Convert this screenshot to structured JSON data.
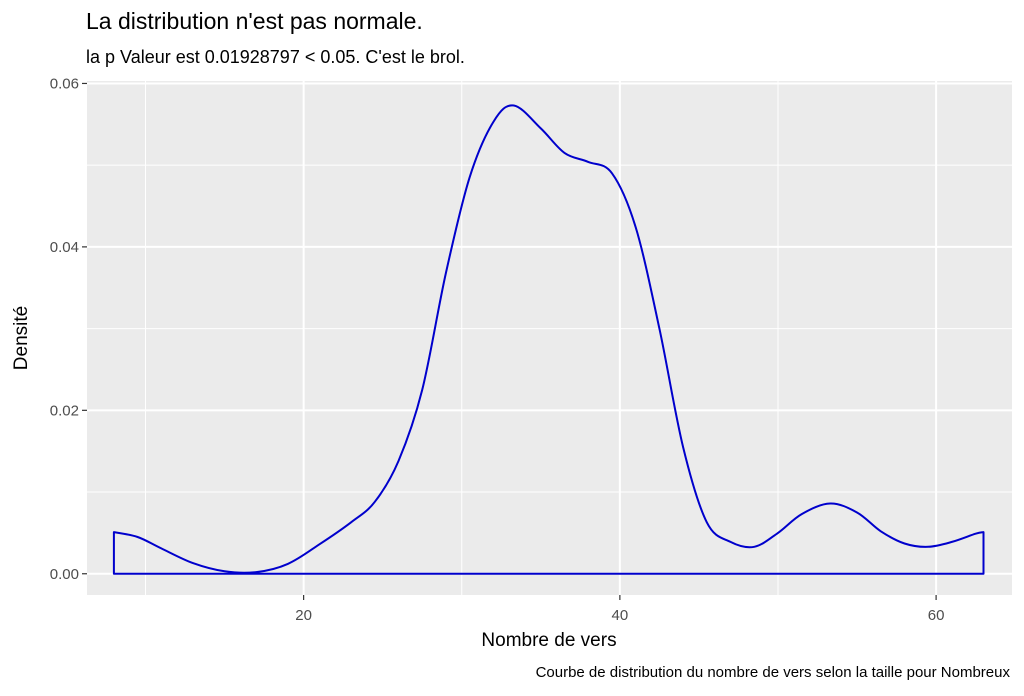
{
  "chart_data": {
    "type": "area",
    "title": "La distribution n'est pas normale.",
    "subtitle": "la p Valeur est  0.01928797  < 0.05. C'est le brol.",
    "caption": "Courbe de distribution du nombre de vers selon la taille pour  Nombreux",
    "xlabel": "Nombre de vers",
    "ylabel": "Densité",
    "xlim": [
      6.3,
      64.8
    ],
    "ylim": [
      -0.0026,
      0.0603
    ],
    "x_ticks": [
      20,
      40,
      60
    ],
    "x_minor": [
      10,
      30,
      50
    ],
    "y_ticks": [
      0,
      0.02,
      0.04,
      0.06
    ],
    "y_minor": [
      0.01,
      0.03,
      0.05
    ],
    "x_tick_labels": [
      "20",
      "40",
      "60"
    ],
    "y_tick_labels": [
      "0.00",
      "0.02",
      "0.04",
      "0.06"
    ],
    "grid": true,
    "colors": {
      "line": "#0000CC",
      "panel": "#EBEBEB",
      "grid": "#FFFFFF",
      "axis_text": "#4D4D4D"
    },
    "series": [
      {
        "x": [
          8,
          9.5,
          11,
          13,
          15,
          17,
          19,
          21,
          23,
          24.5,
          26,
          27.5,
          29,
          30.5,
          32,
          33.3,
          35,
          36.5,
          38,
          39.5,
          41,
          42.5,
          44,
          45.5,
          47,
          48.5,
          50,
          51.5,
          53.3,
          55,
          56.5,
          58,
          59.5,
          61,
          62.5,
          63
        ],
        "y": [
          0.0051,
          0.0045,
          0.0031,
          0.0013,
          0.0003,
          0.0002,
          0.0012,
          0.0036,
          0.0063,
          0.0088,
          0.0138,
          0.0225,
          0.0368,
          0.0485,
          0.0553,
          0.0573,
          0.0545,
          0.0515,
          0.0504,
          0.049,
          0.0424,
          0.03,
          0.0155,
          0.0063,
          0.0039,
          0.0033,
          0.005,
          0.0073,
          0.0086,
          0.0075,
          0.0052,
          0.0037,
          0.0033,
          0.0039,
          0.0049,
          0.0051
        ]
      }
    ]
  }
}
